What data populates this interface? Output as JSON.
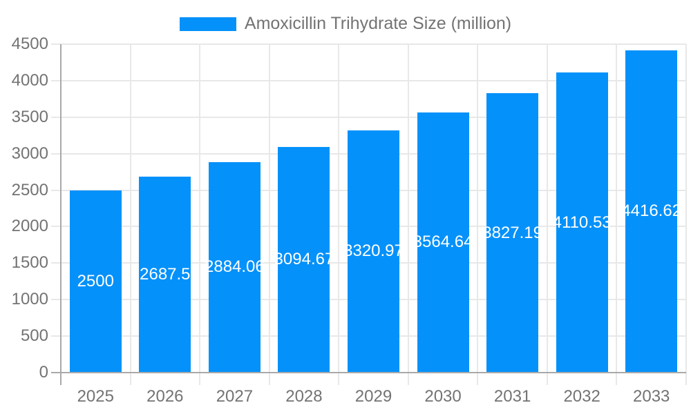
{
  "legend": {
    "label": "Amoxicillin Trihydrate Size (million)"
  },
  "chart_data": {
    "type": "bar",
    "title": "",
    "xlabel": "",
    "ylabel": "",
    "categories": [
      "2025",
      "2026",
      "2027",
      "2028",
      "2029",
      "2030",
      "2031",
      "2032",
      "2033"
    ],
    "series": [
      {
        "name": "Amoxicillin Trihydrate Size (million)",
        "values": [
          2500,
          2687.5,
          2884.06,
          3094.67,
          3320.97,
          3564.64,
          3827.19,
          4110.53,
          4416.62
        ],
        "value_labels": [
          "2500",
          "2687.5",
          "2884.06",
          "3094.67",
          "3320.97",
          "3564.64",
          "3827.19",
          "4110.53",
          "4416.62"
        ]
      }
    ],
    "ylim": [
      0,
      4500
    ],
    "yticks": [
      0,
      500,
      1000,
      1500,
      2000,
      2500,
      3000,
      3500,
      4000,
      4500
    ],
    "grid": true,
    "legend_position": "top",
    "colors": {
      "bar": "#0591fa",
      "bar_value_text": "#ffffff",
      "tick_text": "#737373",
      "gridline": "#e8e8e8",
      "axis_line": "#a9a9a9"
    }
  }
}
